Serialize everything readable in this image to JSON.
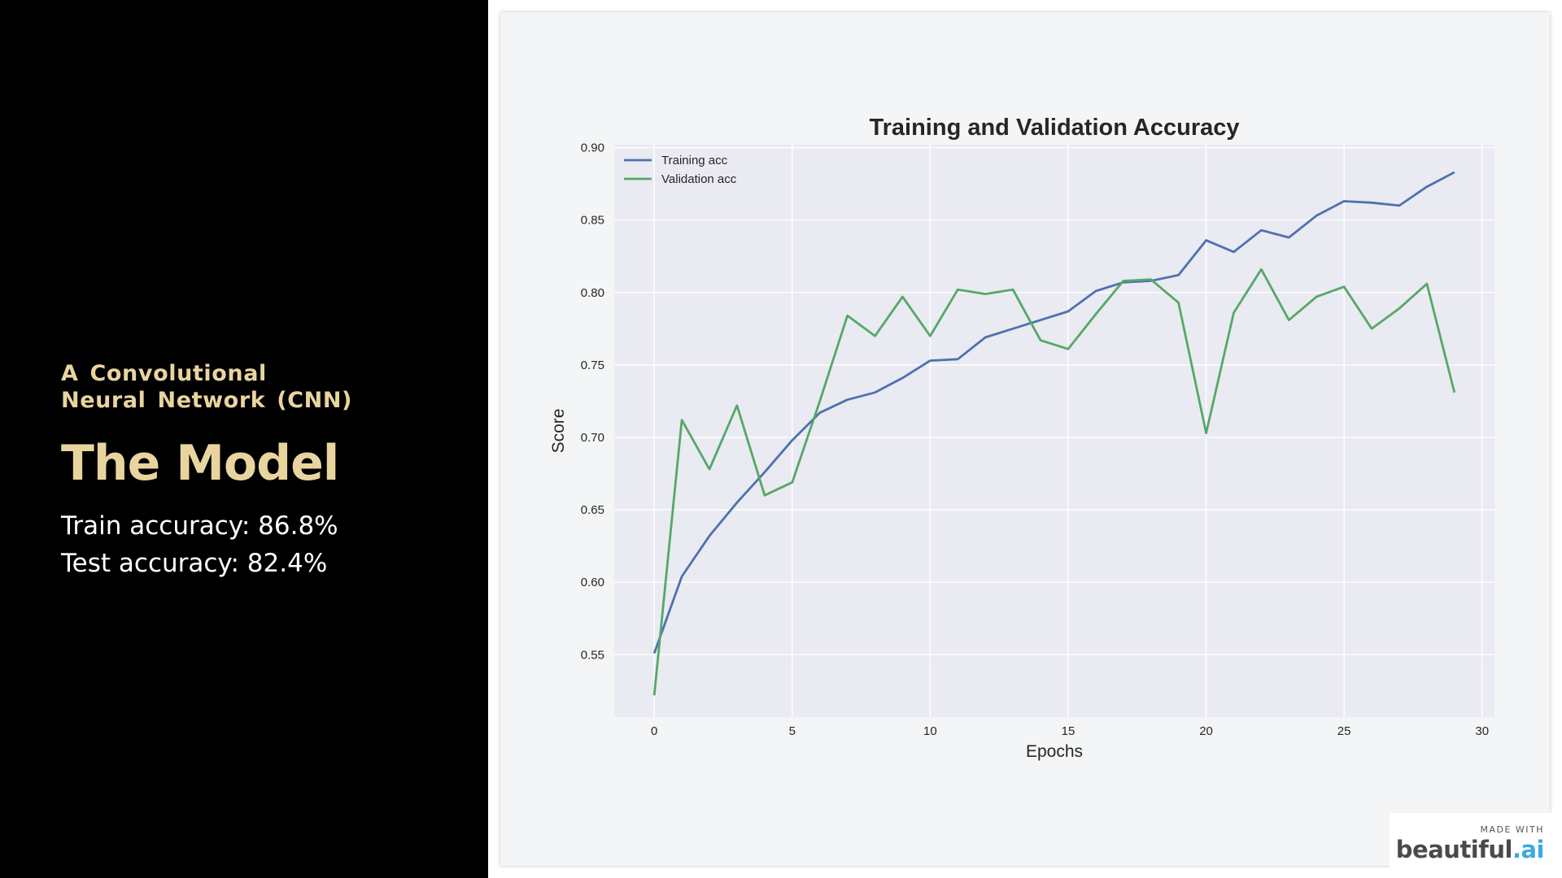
{
  "slide": {
    "subtitle": "A Convolutional Neural Network (CNN)",
    "title": "The Model",
    "train_accuracy": "Train accuracy: 86.8%",
    "test_accuracy": "Test accuracy: 82.4%"
  },
  "colors": {
    "accent": "#e8d59e",
    "left_background": "#000000",
    "card_background": "#f3f5f6",
    "plot_background": "#eaeaf2",
    "training_line": "#4c72b0",
    "validation_line": "#55a868"
  },
  "badge": {
    "made_with": "MADE WITH",
    "brand_main": "beautiful",
    "brand_dot": ".",
    "brand_suffix": "ai"
  },
  "chart_data": {
    "type": "line",
    "title": "Training and Validation Accuracy",
    "xlabel": "Epochs",
    "ylabel": "Score",
    "xlim": [
      -1.45,
      30.45
    ],
    "ylim": [
      0.507,
      0.902
    ],
    "xticks": [
      0,
      5,
      10,
      15,
      20,
      25,
      30
    ],
    "yticks": [
      0.55,
      0.6,
      0.65,
      0.7,
      0.75,
      0.8,
      0.85,
      0.9
    ],
    "grid": true,
    "legend_position": "top-left",
    "x": [
      0,
      1,
      2,
      3,
      4,
      5,
      6,
      7,
      8,
      9,
      10,
      11,
      12,
      13,
      14,
      15,
      16,
      17,
      18,
      19,
      20,
      21,
      22,
      23,
      24,
      25,
      26,
      27,
      28,
      29
    ],
    "series": [
      {
        "name": "Training acc",
        "color": "#4c72b0",
        "values": [
          0.551,
          0.604,
          0.632,
          0.655,
          0.676,
          0.698,
          0.717,
          0.726,
          0.731,
          0.741,
          0.753,
          0.754,
          0.769,
          0.775,
          0.781,
          0.787,
          0.801,
          0.807,
          0.808,
          0.812,
          0.836,
          0.828,
          0.843,
          0.838,
          0.853,
          0.863,
          0.862,
          0.86,
          0.873,
          0.883
        ]
      },
      {
        "name": "Validation acc",
        "color": "#55a868",
        "values": [
          0.522,
          0.712,
          0.678,
          0.722,
          0.66,
          0.669,
          0.725,
          0.784,
          0.77,
          0.797,
          0.77,
          0.802,
          0.799,
          0.802,
          0.767,
          0.761,
          0.785,
          0.808,
          0.809,
          0.793,
          0.703,
          0.786,
          0.816,
          0.781,
          0.797,
          0.804,
          0.775,
          0.789,
          0.806,
          0.731
        ]
      }
    ]
  }
}
